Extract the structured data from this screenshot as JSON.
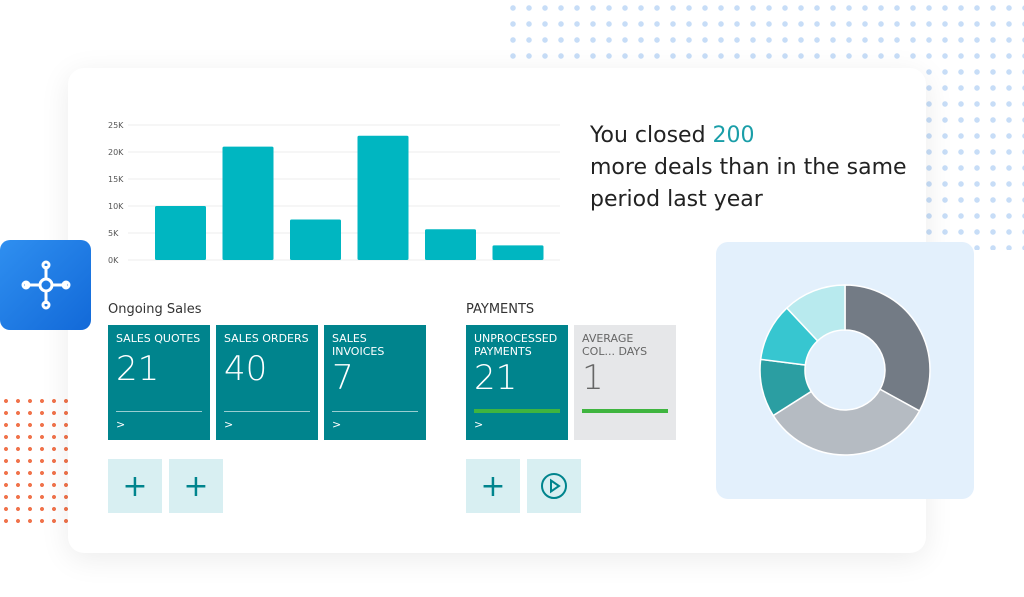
{
  "chart_data": {
    "type": "bar",
    "categories": [
      "",
      "",
      "",
      "",
      "",
      ""
    ],
    "values": [
      10000,
      21000,
      7500,
      23000,
      5700,
      2700
    ],
    "yticks": [
      "0K",
      "5K",
      "10K",
      "15K",
      "20K",
      "25K"
    ],
    "ylim": [
      0,
      25000
    ],
    "grid": true,
    "color": "#00b6c1"
  },
  "headline": {
    "prefix": "You closed ",
    "highlight": "200",
    "line2": "more deals than in the same",
    "line3": "period last year"
  },
  "ongoing": {
    "title": "Ongoing Sales",
    "tiles": [
      {
        "label": "Sales Quotes",
        "value": "21"
      },
      {
        "label": "Sales Orders",
        "value": "40"
      },
      {
        "label": "Sales Invoices",
        "value": "7"
      }
    ]
  },
  "payments": {
    "title": "PAYMENTS",
    "tiles": [
      {
        "label": "Unprocessed Payments",
        "value": "21"
      },
      {
        "label": "Average Col... Days",
        "value": "1"
      }
    ]
  },
  "actions": [
    "plus-icon",
    "plus-icon",
    "plus-icon",
    "play-circle-icon"
  ],
  "donut": {
    "values": [
      33,
      33,
      11,
      11,
      12
    ],
    "colors": [
      "#737b85",
      "#b5bbc2",
      "#2b9ea2",
      "#37c6d0",
      "#b8eaee"
    ]
  },
  "colors": {
    "tile": "#00848d",
    "accent": "#1a9ea8",
    "progress": "#3fb53f"
  }
}
